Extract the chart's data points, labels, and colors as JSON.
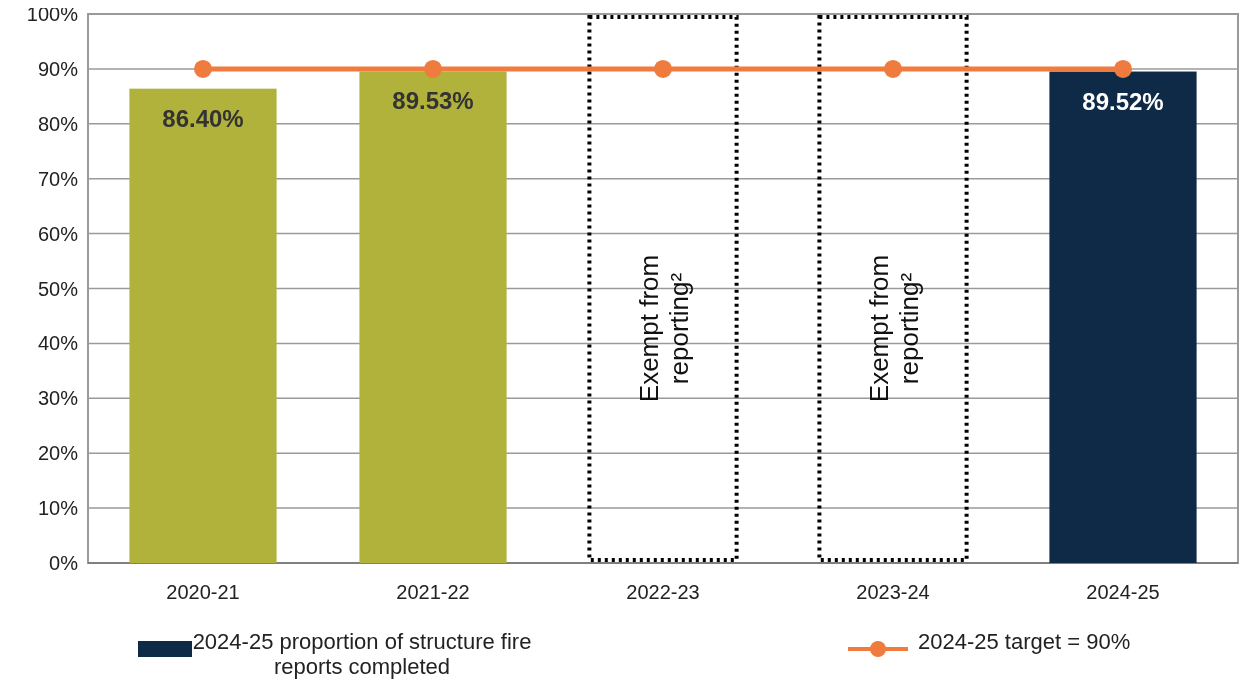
{
  "chart_data": {
    "type": "bar",
    "categories": [
      "2020-21",
      "2021-22",
      "2022-23",
      "2023-24",
      "2024-25"
    ],
    "series": [
      {
        "name": "2024-25 proportion of structure fire reports completed",
        "color": "#0e2a47",
        "colors": [
          "#b0b23c",
          "#b0b23c",
          null,
          null,
          "#0e2a47"
        ],
        "values": [
          86.4,
          89.53,
          null,
          null,
          89.52
        ],
        "value_labels": [
          "86.40%",
          "89.53%",
          null,
          null,
          "89.52%"
        ]
      },
      {
        "type": "line",
        "name": "2024-25 target = 90%",
        "color": "#f07b3f",
        "values": [
          90,
          90,
          90,
          90,
          90
        ],
        "marker": "circle"
      }
    ],
    "ylim": [
      0,
      100
    ],
    "yticks": [
      {
        "value": 0,
        "label": "0%"
      },
      {
        "value": 10,
        "label": "10%"
      },
      {
        "value": 20,
        "label": "20%"
      },
      {
        "value": 30,
        "label": "30%"
      },
      {
        "value": 40,
        "label": "40%"
      },
      {
        "value": 50,
        "label": "50%"
      },
      {
        "value": 60,
        "label": "60%"
      },
      {
        "value": 70,
        "label": "70%"
      },
      {
        "value": 80,
        "label": "80%"
      },
      {
        "value": 90,
        "label": "90%"
      },
      {
        "value": 100,
        "label": "100%"
      }
    ],
    "grid": "y",
    "legend": "bottom",
    "annotations": [
      "Exempt from reporting²",
      "Exempt from reporting²"
    ]
  }
}
